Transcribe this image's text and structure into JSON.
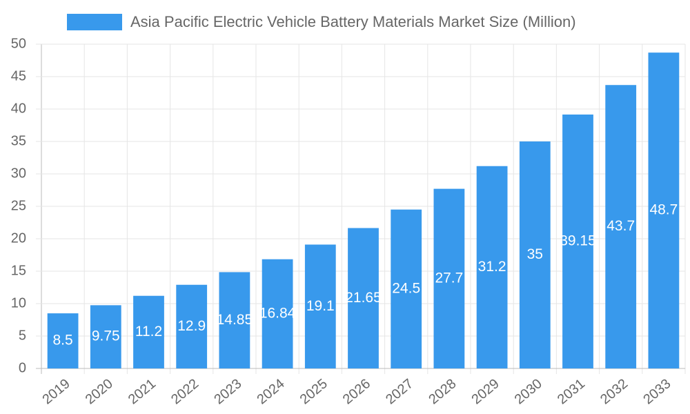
{
  "chart_data": {
    "type": "bar",
    "series": [
      {
        "name": "Asia Pacific Electric Vehicle Battery Materials Market Size (Million)",
        "color": "#3899ec",
        "values": [
          8.5,
          9.75,
          11.2,
          12.9,
          14.85,
          16.84,
          19.1,
          21.65,
          24.5,
          27.7,
          31.2,
          35,
          39.15,
          43.7,
          48.7
        ]
      }
    ],
    "categories": [
      "2019",
      "2020",
      "2021",
      "2022",
      "2023",
      "2024",
      "2025",
      "2026",
      "2027",
      "2028",
      "2029",
      "2030",
      "2031",
      "2032",
      "2033"
    ],
    "ylim": [
      0,
      50
    ],
    "yticks": [
      0,
      5,
      10,
      15,
      20,
      25,
      30,
      35,
      40,
      45,
      50
    ],
    "grid": true,
    "legend": "top"
  }
}
